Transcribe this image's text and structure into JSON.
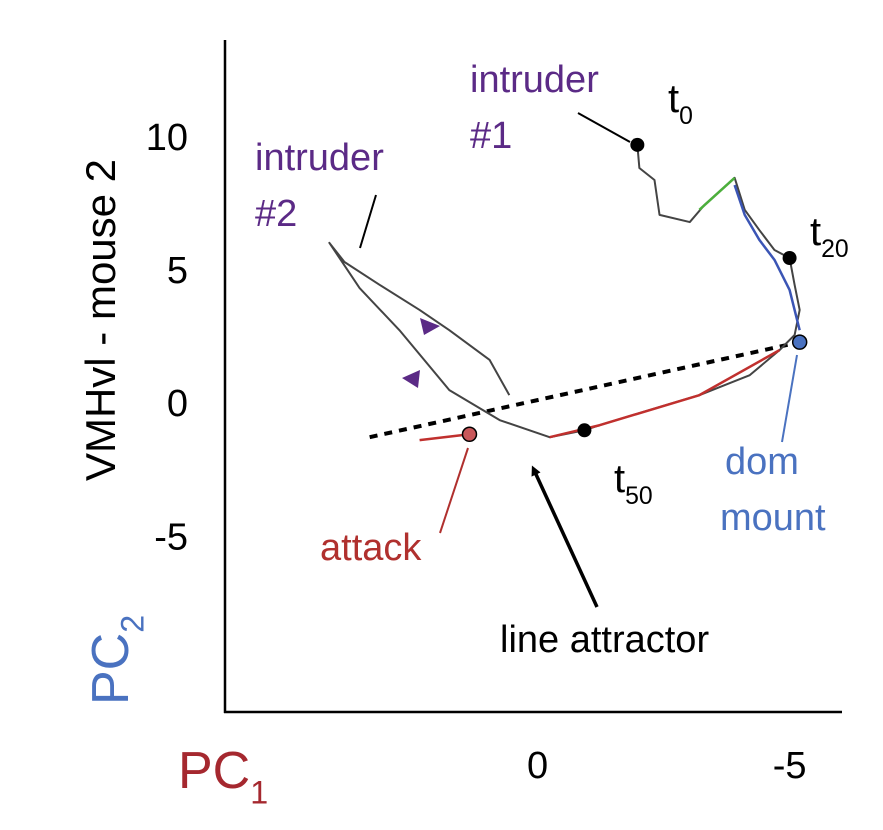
{
  "chart_data": {
    "type": "trajectory",
    "y_label": "VMHvl - mouse 2",
    "pc_y": {
      "text": "PC",
      "sub": "2",
      "color": "#4a72c0"
    },
    "pc_x": {
      "text": "PC",
      "sub": "1",
      "color": "#a5282f"
    },
    "xlim": [
      6.2,
      -6.0
    ],
    "ylim": [
      -11.6,
      13.6
    ],
    "xticks": [
      0,
      -5
    ],
    "yticks": [
      10,
      5,
      0,
      -5
    ],
    "series": [
      {
        "name": "trajectory",
        "color": "#444444",
        "x": [
          -1.98,
          -2.02,
          -2.32,
          -2.42,
          -3.02,
          -3.31,
          -3.91,
          -4.11,
          -4.4,
          -4.7,
          -5.0,
          -5.1,
          -5.2,
          -5.1,
          -4.8,
          -4.21,
          -3.21,
          -2.22,
          -1.23,
          -0.93,
          -0.24,
          0.75,
          1.75,
          2.74,
          3.53,
          4.13,
          3.83,
          3.13,
          2.34,
          1.75,
          0.95,
          0.56
        ],
        "values": [
          9.7,
          8.83,
          8.38,
          7.07,
          6.8,
          7.44,
          8.46,
          7.26,
          6.5,
          5.75,
          5.45,
          4.44,
          3.5,
          2.56,
          1.99,
          1.05,
          0.3,
          -0.26,
          -0.83,
          -1.02,
          -1.28,
          -0.64,
          0.49,
          2.74,
          4.32,
          6.02,
          5.3,
          4.44,
          3.5,
          2.74,
          1.62,
          0.3
        ]
      },
      {
        "name": "green",
        "color": "#4caf3c",
        "x": [
          -3.21,
          -3.91
        ],
        "values": [
          7.26,
          8.46
        ]
      },
      {
        "name": "blue",
        "color": "#3b55b5",
        "x": [
          -3.91,
          -4.11,
          -4.4,
          -4.7,
          -5.0,
          -5.2
        ],
        "values": [
          8.19,
          7.07,
          6.13,
          5.38,
          4.25,
          2.74
        ]
      },
      {
        "name": "red",
        "color": "#c0302e",
        "x": [
          -4.8,
          -3.21,
          -1.23,
          -0.24
        ],
        "values": [
          1.99,
          0.3,
          -0.83,
          -1.28
        ]
      },
      {
        "name": "red loop",
        "color": "#c0302e",
        "x": [
          2.34,
          1.35
        ],
        "values": [
          -1.39,
          -1.17
        ]
      }
    ],
    "attractor": {
      "x": [
        3.33,
        -5.2
      ],
      "values": [
        -1.28,
        2.29
      ]
    },
    "points": [
      {
        "x": -1.98,
        "y": 9.7,
        "color": "#000000"
      },
      {
        "x": -5.0,
        "y": 5.45,
        "color": "#000000"
      },
      {
        "x": -0.93,
        "y": -1.02,
        "color": "#000000"
      },
      {
        "x": 1.35,
        "y": -1.17,
        "color": "#c9575a"
      },
      {
        "x": -5.2,
        "y": 2.29,
        "color": "#4a72c0"
      }
    ],
    "annotations": [
      {
        "lines": [
          "intruder",
          "#1"
        ],
        "color": "#5b2a86"
      },
      {
        "lines": [
          "intruder",
          "#2"
        ],
        "color": "#5b2a86"
      },
      {
        "lines": [
          "attack"
        ],
        "color": "#b0302e"
      },
      {
        "lines": [
          "dom",
          "mount"
        ],
        "color": "#4a72c0"
      },
      {
        "lines": [
          "line attractor"
        ],
        "color": "#000000"
      }
    ],
    "time_labels": [
      {
        "text": "t",
        "sub": "0"
      },
      {
        "text": "t",
        "sub": "20"
      },
      {
        "text": "t",
        "sub": "50"
      }
    ]
  }
}
